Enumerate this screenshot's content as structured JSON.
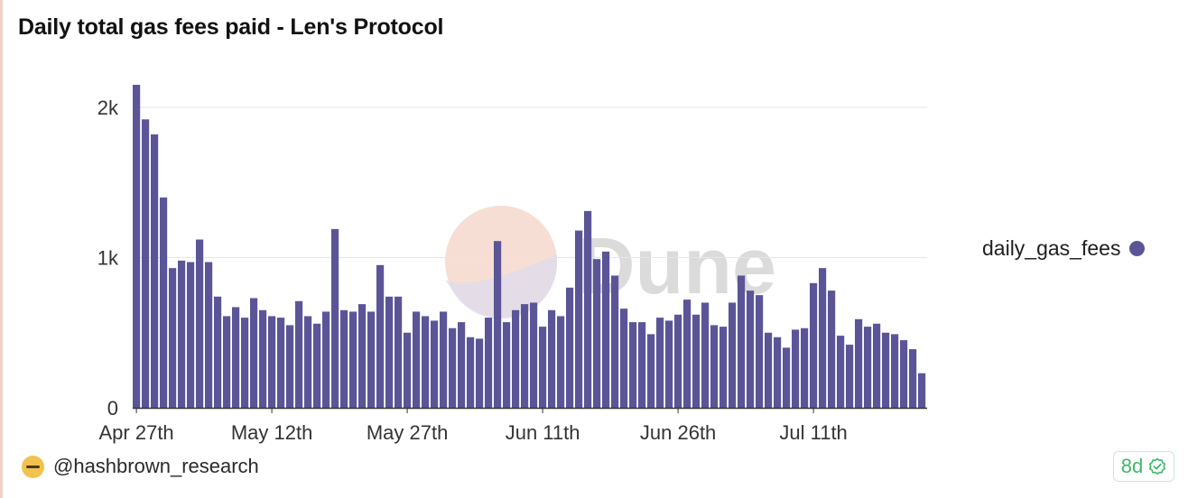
{
  "title": "Daily total gas fees paid - Len's Protocol",
  "legend": {
    "label": "daily_gas_fees",
    "color": "#5b5597"
  },
  "footer": {
    "author": "@hashbrown_research",
    "age_badge": "8d"
  },
  "watermark": {
    "text": "Dune"
  },
  "colors": {
    "bar": "#5b5597",
    "grid": "#e6e6e6",
    "axis": "#333333",
    "text": "#333333"
  },
  "chart_data": {
    "type": "bar",
    "title": "Daily total gas fees paid - Len's Protocol",
    "xlabel": "",
    "ylabel": "",
    "ylim": [
      0,
      2150
    ],
    "y_ticks": [
      {
        "value": 0,
        "label": "0"
      },
      {
        "value": 1000,
        "label": "1k"
      },
      {
        "value": 2000,
        "label": "2k"
      }
    ],
    "x_ticks": [
      {
        "index": 0,
        "label": "Apr 27th"
      },
      {
        "index": 15,
        "label": "May 12th"
      },
      {
        "index": 30,
        "label": "May 27th"
      },
      {
        "index": 45,
        "label": "Jun 11th"
      },
      {
        "index": 60,
        "label": "Jun 26th"
      },
      {
        "index": 75,
        "label": "Jul 11th"
      }
    ],
    "grid": true,
    "legend_position": "right",
    "series": [
      {
        "name": "daily_gas_fees",
        "values": [
          2150,
          1920,
          1820,
          1400,
          930,
          980,
          970,
          1120,
          970,
          740,
          610,
          670,
          600,
          730,
          650,
          610,
          600,
          550,
          710,
          610,
          560,
          640,
          1190,
          650,
          640,
          690,
          640,
          950,
          740,
          740,
          500,
          640,
          610,
          580,
          640,
          530,
          570,
          470,
          460,
          600,
          1110,
          570,
          650,
          690,
          700,
          540,
          650,
          610,
          800,
          1180,
          1310,
          990,
          1040,
          880,
          660,
          570,
          570,
          490,
          600,
          580,
          620,
          720,
          620,
          700,
          550,
          540,
          700,
          880,
          780,
          750,
          500,
          470,
          400,
          520,
          530,
          830,
          930,
          780,
          480,
          420,
          590,
          540,
          560,
          500,
          490,
          450,
          390,
          230
        ]
      }
    ]
  }
}
